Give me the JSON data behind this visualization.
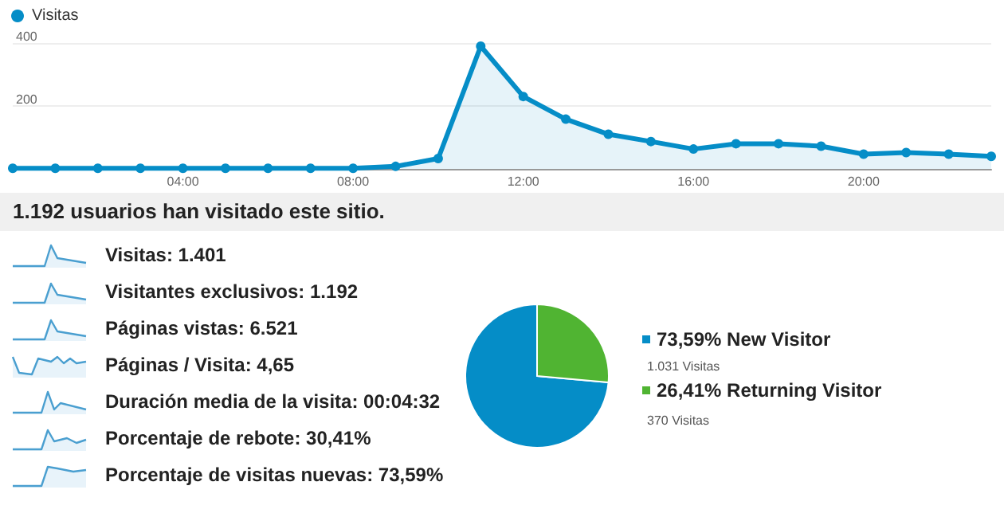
{
  "chart_data": [
    {
      "type": "area",
      "x": [
        0,
        1,
        2,
        3,
        4,
        5,
        6,
        7,
        8,
        9,
        10,
        11,
        12,
        13,
        14,
        15,
        16,
        17,
        18,
        19,
        20,
        21,
        22,
        23
      ],
      "series": [
        {
          "name": "Visitas",
          "color": "#058dc7",
          "values": [
            2,
            2,
            2,
            2,
            2,
            2,
            2,
            2,
            2,
            8,
            33,
            390,
            230,
            158,
            110,
            87,
            63,
            80,
            80,
            72,
            47,
            52,
            47,
            40
          ]
        }
      ],
      "xlim": [
        0,
        23
      ],
      "xticks": [
        {
          "value": 4,
          "label": "04:00"
        },
        {
          "value": 8,
          "label": "08:00"
        },
        {
          "value": 12,
          "label": "12:00"
        },
        {
          "value": 16,
          "label": "16:00"
        },
        {
          "value": 20,
          "label": "20:00"
        }
      ],
      "ylim": [
        0,
        400
      ],
      "yticks": [
        {
          "value": 0,
          "label": null
        },
        200,
        400
      ],
      "grid": "y",
      "legend": "top left",
      "marker": "circle"
    },
    {
      "type": "other",
      "title": "1.192 usuarios han visitado este sitio.",
      "annotations": [
        "Visitas: 1.401",
        "Visitantes exclusivos: 1.192",
        "Páginas vistas: 6.521",
        "Páginas / Visita: 4,65",
        "Duración media de la visita: 00:04:32",
        "Porcentaje de rebote: 30,41%",
        "Porcentaje de visitas nuevas: 73,59%"
      ]
    },
    {
      "type": "pie",
      "categories": [
        "New Visitor",
        "Returning Visitor"
      ],
      "values": [
        73.59,
        26.41
      ],
      "colors": [
        "#058dc7",
        "#50b432"
      ],
      "value_labels": [
        "73,59%",
        "26,41%"
      ],
      "annotations": [
        "1.031 Visitas",
        "370 Visitas"
      ],
      "legend": "right"
    }
  ]
}
